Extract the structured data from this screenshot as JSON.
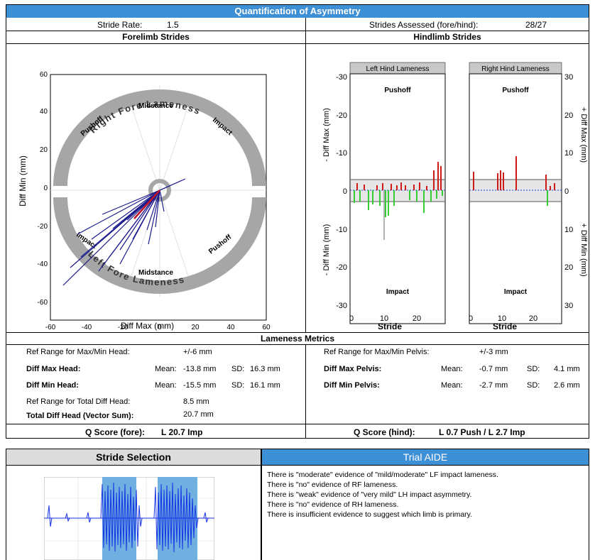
{
  "report": {
    "title": "Quantification of Asymmetry",
    "stride_rate_label": "Stride Rate:",
    "stride_rate_value": "1.5",
    "strides_assessed_label": "Strides Assessed (fore/hind):",
    "strides_assessed_value": "28/27",
    "forelimb_title": "Forelimb Strides",
    "hindlimb_title": "Hindlimb Strides"
  },
  "forelimb_plot": {
    "x_label": "Diff Max (mm)",
    "y_label": "Diff Min (mm)",
    "x_ticks": [
      "-60",
      "-40",
      "-20",
      "0",
      "20",
      "40",
      "60"
    ],
    "y_ticks": [
      "60",
      "40",
      "20",
      "0",
      "-20",
      "-40",
      "-60"
    ],
    "ring_upper_label": "Right Fore Lameness",
    "ring_lower_label": "Left Fore Lameness",
    "upper_labels": [
      "Pushoff",
      "Midstance",
      "Impact"
    ],
    "lower_labels": [
      "Impact",
      "Midstance",
      "Pushoff"
    ]
  },
  "hindlimb_plot": {
    "left_panel_title": "Left Hind Lameness",
    "right_panel_title": "Right Hind Lameness",
    "top_label": "Pushoff",
    "bottom_label": "Impact",
    "left_y_label_top": "- Diff Max (mm)",
    "left_y_label_bottom": "- Diff Min (mm)",
    "right_y_label_top": "+ Diff Max (mm)",
    "right_y_label_bottom": "+ Diff Min (mm)",
    "left_y_ticks": [
      "-30",
      "-20",
      "-10",
      "0",
      "-10",
      "-20",
      "-30"
    ],
    "right_y_ticks": [
      "30",
      "20",
      "10",
      "0",
      "10",
      "20",
      "30"
    ],
    "left_x_ticks": [
      "0",
      "10",
      "20"
    ],
    "right_x_ticks": [
      "0",
      "10",
      "20"
    ],
    "x_label": "Stride"
  },
  "lameness_metrics": {
    "title": "Lameness Metrics",
    "head": {
      "ref_range_label": "Ref Range for Max/Min Head:",
      "ref_range_value": "+/-6 mm",
      "diff_max_label": "Diff Max Head:",
      "diff_max_mean_label": "Mean:",
      "diff_max_mean": "-13.8 mm",
      "diff_max_sd_label": "SD:",
      "diff_max_sd": "16.3 mm",
      "diff_min_label": "Diff Min Head:",
      "diff_min_mean_label": "Mean:",
      "diff_min_mean": "-15.5 mm",
      "diff_min_sd_label": "SD:",
      "diff_min_sd": "16.1 mm",
      "ref_total_label": "Ref Range for Total Diff Head:",
      "ref_total_value": "8.5 mm",
      "total_label": "Total Diff Head (Vector Sum):",
      "total_value": "20.7 mm"
    },
    "pelvis": {
      "ref_range_label": "Ref Range for Max/Min Pelvis:",
      "ref_range_value": "+/-3 mm",
      "diff_max_label": "Diff Max Pelvis:",
      "diff_max_mean_label": "Mean:",
      "diff_max_mean": "-0.7 mm",
      "diff_max_sd_label": "SD:",
      "diff_max_sd": "4.1 mm",
      "diff_min_label": "Diff Min Pelvis:",
      "diff_min_mean_label": "Mean:",
      "diff_min_mean": "-2.7 mm",
      "diff_min_sd_label": "SD:",
      "diff_min_sd": "2.6 mm"
    },
    "q_score_fore_label": "Q Score (fore):",
    "q_score_fore_value": "L 20.7 Imp",
    "q_score_hind_label": "Q Score (hind):",
    "q_score_hind_value": "L 0.7 Push / L 2.7 Imp"
  },
  "stride_selection": {
    "title": "Stride Selection"
  },
  "trial_aide": {
    "title": "Trial AIDE",
    "lines": [
      "There is \"moderate\" evidence of \"mild/moderate\" LF impact lameness.",
      "There is \"no\" evidence of RF lameness.",
      "There is \"weak\" evidence of \"very mild\" LH impact asymmetry.",
      "There is \"no\" evidence of RH lameness.",
      "There is insufficient evidence to suggest which limb is primary."
    ]
  },
  "colors": {
    "header_blue": "#3d8fd6",
    "ring_gray": "#a6a6a6",
    "vector_blue": "#1a1a8c",
    "vector_red": "#c0142a",
    "bar_red": "#d01a1a",
    "bar_green": "#33cc33",
    "band_gray": "#e6e6e6",
    "selection_blue": "#6fb0e0",
    "signal_blue": "#1733e6"
  }
}
